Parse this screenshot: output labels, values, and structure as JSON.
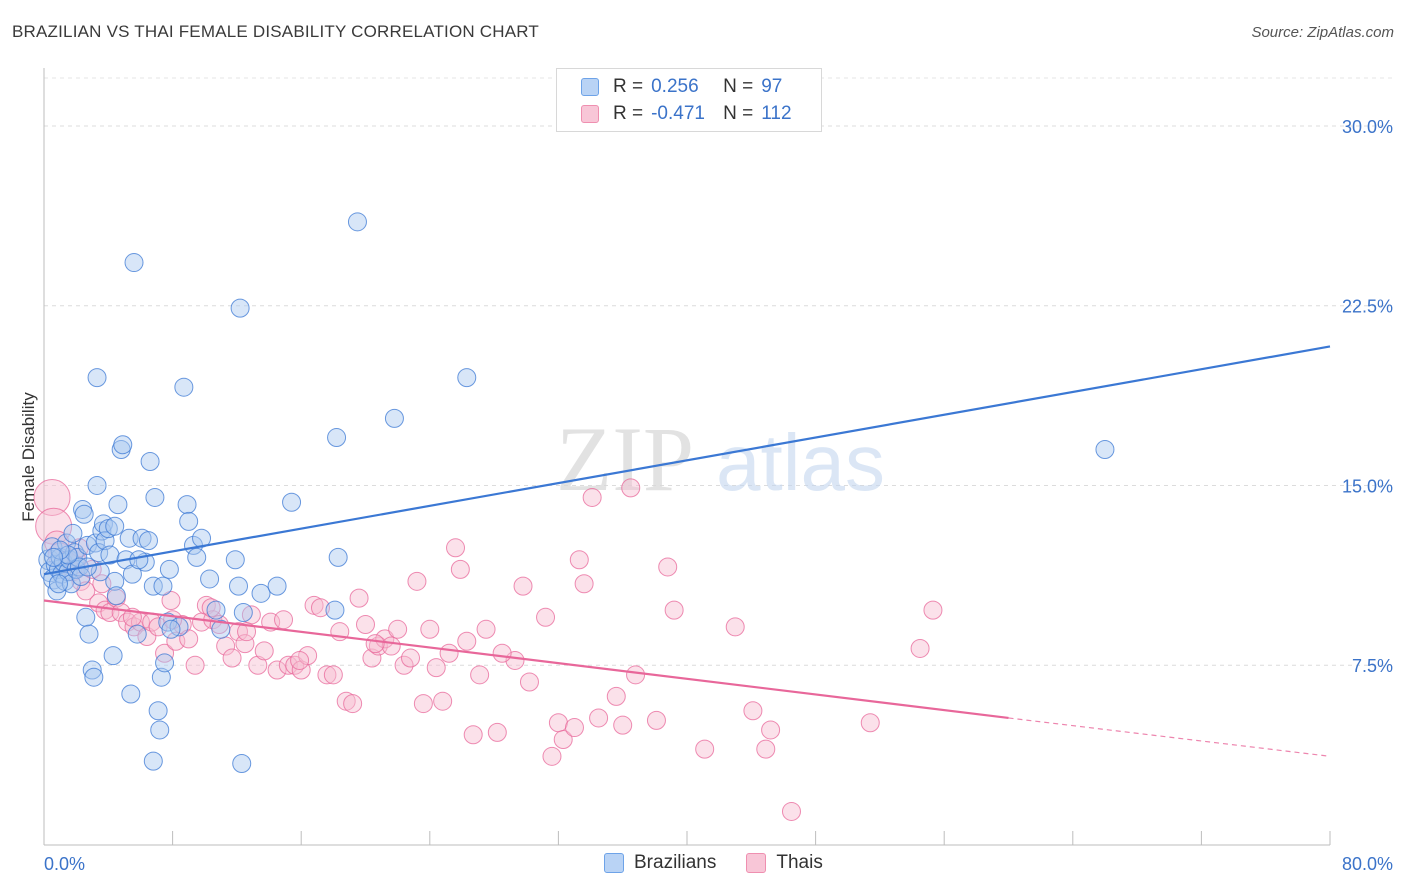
{
  "title": "BRAZILIAN VS THAI FEMALE DISABILITY CORRELATION CHART",
  "source": "Source: ZipAtlas.com",
  "watermark": {
    "zip": "ZIP",
    "atlas": "atlas"
  },
  "legend": {
    "rows": [
      {
        "r_label": "R =",
        "r_value": "0.256",
        "n_label": "N =",
        "n_value": "97",
        "color": "#6ea3e8",
        "fill": "#b9d3f5"
      },
      {
        "r_label": "R =",
        "r_value": "-0.471",
        "n_label": "N =",
        "n_value": "112",
        "color": "#ef8fb0",
        "fill": "#f8c6d7"
      }
    ]
  },
  "bottom_legend": [
    "Brazilians",
    "Thais"
  ],
  "chart_data": {
    "type": "scatter",
    "title": "BRAZILIAN VS THAI FEMALE DISABILITY CORRELATION CHART",
    "xlabel": "",
    "ylabel": "Female Disability",
    "xlim": [
      0,
      80
    ],
    "ylim": [
      0,
      32
    ],
    "x_tick_labels": [
      "0.0%",
      "80.0%"
    ],
    "y_ticks": [
      7.5,
      15.0,
      22.5,
      30.0
    ],
    "y_tick_labels": [
      "7.5%",
      "15.0%",
      "22.5%",
      "30.0%"
    ],
    "grid": true,
    "legend_position": "top-center",
    "series": [
      {
        "name": "Brazilians",
        "color": "#3b78d4",
        "fill": "#a9c8f0",
        "trend": {
          "x": [
            0,
            80
          ],
          "y": [
            11.3,
            20.8
          ]
        },
        "points": [
          [
            0.3,
            11.9
          ],
          [
            0.4,
            11.4
          ],
          [
            0.5,
            12.4
          ],
          [
            0.6,
            11.1
          ],
          [
            0.7,
            11.7
          ],
          [
            0.8,
            10.6
          ],
          [
            0.9,
            11.5
          ],
          [
            1.0,
            12.0
          ],
          [
            1.1,
            11.3
          ],
          [
            1.2,
            11.8
          ],
          [
            1.3,
            11.0
          ],
          [
            1.4,
            12.6
          ],
          [
            1.5,
            11.4
          ],
          [
            1.6,
            11.9
          ],
          [
            1.7,
            10.9
          ],
          [
            1.8,
            13.0
          ],
          [
            1.9,
            12.2
          ],
          [
            2.0,
            11.5
          ],
          [
            2.1,
            12.0
          ],
          [
            2.2,
            11.6
          ],
          [
            2.4,
            14.0
          ],
          [
            2.5,
            13.8
          ],
          [
            2.6,
            9.5
          ],
          [
            2.7,
            12.5
          ],
          [
            2.8,
            8.8
          ],
          [
            3.0,
            7.3
          ],
          [
            3.1,
            7.0
          ],
          [
            3.2,
            12.6
          ],
          [
            3.3,
            15.0
          ],
          [
            3.4,
            12.2
          ],
          [
            3.6,
            13.1
          ],
          [
            3.7,
            13.4
          ],
          [
            3.8,
            12.7
          ],
          [
            4.0,
            13.2
          ],
          [
            4.1,
            12.1
          ],
          [
            4.3,
            7.9
          ],
          [
            4.4,
            11.0
          ],
          [
            4.5,
            10.4
          ],
          [
            4.6,
            14.2
          ],
          [
            4.8,
            16.5
          ],
          [
            4.9,
            16.7
          ],
          [
            5.1,
            11.9
          ],
          [
            5.3,
            12.8
          ],
          [
            5.4,
            6.3
          ],
          [
            5.5,
            11.3
          ],
          [
            5.6,
            24.3
          ],
          [
            5.8,
            8.8
          ],
          [
            6.1,
            12.8
          ],
          [
            6.3,
            11.8
          ],
          [
            6.5,
            12.7
          ],
          [
            6.6,
            16.0
          ],
          [
            6.8,
            10.8
          ],
          [
            6.9,
            14.5
          ],
          [
            7.1,
            5.6
          ],
          [
            7.2,
            4.8
          ],
          [
            7.3,
            7.0
          ],
          [
            7.4,
            10.8
          ],
          [
            7.5,
            7.6
          ],
          [
            7.7,
            9.3
          ],
          [
            7.8,
            11.5
          ],
          [
            8.4,
            9.1
          ],
          [
            8.7,
            19.1
          ],
          [
            8.9,
            14.2
          ],
          [
            9.0,
            13.5
          ],
          [
            9.3,
            12.5
          ],
          [
            9.5,
            12.0
          ],
          [
            9.8,
            12.8
          ],
          [
            10.3,
            11.1
          ],
          [
            10.7,
            9.8
          ],
          [
            11.0,
            9.0
          ],
          [
            11.9,
            11.9
          ],
          [
            12.1,
            10.8
          ],
          [
            12.2,
            22.4
          ],
          [
            12.3,
            3.4
          ],
          [
            12.4,
            9.7
          ],
          [
            13.5,
            10.5
          ],
          [
            14.5,
            10.8
          ],
          [
            15.4,
            14.3
          ],
          [
            18.1,
            9.8
          ],
          [
            18.2,
            17.0
          ],
          [
            18.3,
            12.0
          ],
          [
            19.5,
            26.0
          ],
          [
            21.8,
            17.8
          ],
          [
            26.3,
            19.5
          ],
          [
            4.4,
            13.3
          ],
          [
            1.5,
            12.1
          ],
          [
            2.3,
            11.2
          ],
          [
            0.9,
            10.9
          ],
          [
            3.5,
            11.4
          ],
          [
            5.9,
            11.9
          ],
          [
            6.8,
            3.5
          ],
          [
            3.3,
            19.5
          ],
          [
            7.9,
            9.0
          ],
          [
            2.7,
            11.6
          ],
          [
            1.0,
            12.3
          ],
          [
            66.0,
            16.5
          ],
          [
            0.6,
            12.0
          ]
        ]
      },
      {
        "name": "Thais",
        "color": "#e8679a",
        "fill": "#f6bcd0",
        "trend": {
          "x": [
            0,
            60
          ],
          "y": [
            10.2,
            5.3
          ]
        },
        "trend_dashed": {
          "x": [
            60,
            80
          ],
          "y": [
            5.3,
            3.7
          ]
        },
        "points": [
          [
            0.5,
            14.5
          ],
          [
            0.6,
            13.3
          ],
          [
            0.8,
            12.6
          ],
          [
            1.0,
            12.1
          ],
          [
            1.2,
            11.7
          ],
          [
            1.5,
            11.9
          ],
          [
            1.8,
            11.4
          ],
          [
            2.0,
            12.0
          ],
          [
            2.3,
            11.0
          ],
          [
            2.6,
            10.6
          ],
          [
            3.0,
            11.5
          ],
          [
            3.4,
            10.1
          ],
          [
            3.8,
            9.8
          ],
          [
            4.1,
            9.7
          ],
          [
            4.5,
            10.3
          ],
          [
            4.8,
            9.7
          ],
          [
            5.2,
            9.3
          ],
          [
            5.6,
            9.1
          ],
          [
            6.0,
            9.3
          ],
          [
            6.4,
            8.7
          ],
          [
            6.7,
            9.3
          ],
          [
            7.1,
            9.1
          ],
          [
            7.5,
            8.0
          ],
          [
            7.9,
            10.2
          ],
          [
            8.2,
            8.5
          ],
          [
            8.6,
            9.2
          ],
          [
            9.0,
            8.6
          ],
          [
            9.4,
            7.5
          ],
          [
            9.8,
            9.3
          ],
          [
            10.1,
            10.0
          ],
          [
            10.5,
            9.4
          ],
          [
            10.9,
            9.2
          ],
          [
            11.3,
            8.3
          ],
          [
            11.7,
            7.8
          ],
          [
            12.1,
            8.9
          ],
          [
            12.5,
            8.4
          ],
          [
            12.9,
            9.6
          ],
          [
            13.3,
            7.5
          ],
          [
            13.7,
            8.1
          ],
          [
            14.1,
            9.3
          ],
          [
            14.5,
            7.3
          ],
          [
            14.9,
            9.4
          ],
          [
            15.2,
            7.5
          ],
          [
            15.6,
            7.5
          ],
          [
            16.0,
            7.3
          ],
          [
            16.4,
            7.9
          ],
          [
            16.8,
            10.0
          ],
          [
            17.2,
            9.9
          ],
          [
            17.6,
            7.1
          ],
          [
            18.0,
            7.1
          ],
          [
            18.4,
            8.9
          ],
          [
            18.8,
            6.0
          ],
          [
            19.2,
            5.9
          ],
          [
            19.6,
            10.3
          ],
          [
            20.0,
            9.2
          ],
          [
            20.4,
            7.8
          ],
          [
            20.8,
            8.3
          ],
          [
            21.2,
            8.6
          ],
          [
            21.6,
            8.3
          ],
          [
            22.0,
            9.0
          ],
          [
            22.4,
            7.5
          ],
          [
            22.8,
            7.8
          ],
          [
            23.2,
            11.0
          ],
          [
            23.6,
            5.9
          ],
          [
            24.0,
            9.0
          ],
          [
            24.4,
            7.4
          ],
          [
            24.8,
            6.0
          ],
          [
            25.2,
            8.0
          ],
          [
            25.6,
            12.4
          ],
          [
            25.9,
            11.5
          ],
          [
            26.3,
            8.5
          ],
          [
            26.7,
            4.6
          ],
          [
            27.1,
            7.1
          ],
          [
            27.5,
            9.0
          ],
          [
            28.2,
            4.7
          ],
          [
            29.3,
            7.7
          ],
          [
            29.8,
            10.8
          ],
          [
            30.2,
            6.8
          ],
          [
            31.2,
            9.5
          ],
          [
            31.6,
            3.7
          ],
          [
            32.0,
            5.1
          ],
          [
            32.3,
            4.4
          ],
          [
            33.0,
            4.9
          ],
          [
            33.3,
            11.9
          ],
          [
            33.6,
            10.9
          ],
          [
            34.1,
            14.5
          ],
          [
            34.5,
            5.3
          ],
          [
            36.0,
            5.0
          ],
          [
            36.5,
            14.9
          ],
          [
            36.8,
            7.1
          ],
          [
            38.1,
            5.2
          ],
          [
            38.8,
            11.6
          ],
          [
            39.2,
            9.8
          ],
          [
            41.1,
            4.0
          ],
          [
            43.0,
            9.1
          ],
          [
            44.1,
            5.6
          ],
          [
            44.9,
            4.0
          ],
          [
            45.2,
            4.8
          ],
          [
            46.5,
            1.4
          ],
          [
            51.4,
            5.1
          ],
          [
            54.5,
            8.2
          ],
          [
            55.3,
            9.8
          ],
          [
            2.2,
            12.4
          ],
          [
            3.6,
            10.9
          ],
          [
            5.5,
            9.5
          ],
          [
            10.4,
            9.9
          ],
          [
            15.9,
            7.7
          ],
          [
            20.6,
            8.4
          ],
          [
            28.5,
            8.0
          ],
          [
            35.6,
            6.2
          ],
          [
            8.0,
            9.4
          ],
          [
            12.6,
            8.9
          ]
        ]
      }
    ]
  }
}
